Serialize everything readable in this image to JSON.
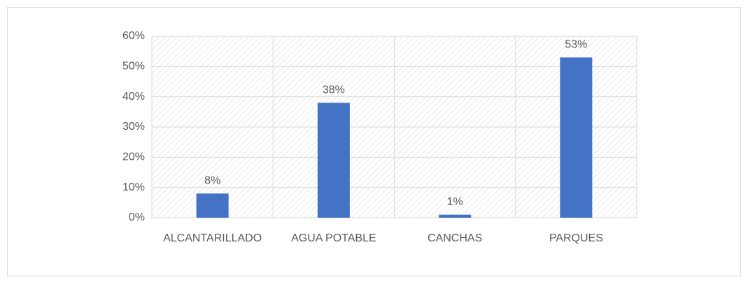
{
  "chart_data": {
    "type": "bar",
    "categories": [
      "ALCANTARILLADO",
      "AGUA POTABLE",
      "CANCHAS",
      "PARQUES"
    ],
    "values": [
      8,
      38,
      1,
      53
    ],
    "value_labels": [
      "8%",
      "38%",
      "1%",
      "53%"
    ],
    "color": "#4472c4",
    "ylim": [
      0,
      60
    ],
    "yticks": [
      {
        "value": 0,
        "label": "0%"
      },
      {
        "value": 10,
        "label": "10%"
      },
      {
        "value": 20,
        "label": "20%"
      },
      {
        "value": 30,
        "label": "30%"
      },
      {
        "value": 40,
        "label": "40%"
      },
      {
        "value": 50,
        "label": "50%"
      },
      {
        "value": 60,
        "label": "60%"
      }
    ],
    "grid": true
  }
}
